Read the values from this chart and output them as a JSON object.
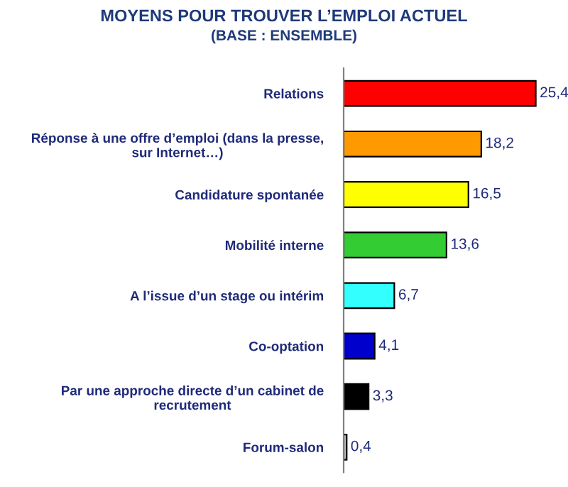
{
  "chart_data": {
    "type": "bar",
    "orientation": "horizontal",
    "title": "MOYENS POUR TROUVER L’EMPLOI ACTUEL",
    "subtitle": "(BASE : ENSEMBLE)",
    "categories": [
      "Relations",
      "Réponse à une offre d’emploi (dans la presse,\nsur Internet…)",
      "Candidature spontanée",
      "Mobilité interne",
      "A l’issue d’un stage ou intérim",
      "Co-optation",
      "Par une approche directe d’un cabinet de\nrecrutement",
      "Forum-salon"
    ],
    "values": [
      25.4,
      18.2,
      16.5,
      13.6,
      6.7,
      4.1,
      3.3,
      0.4
    ],
    "colors": [
      "#ff0000",
      "#ff9900",
      "#ffff00",
      "#33cc33",
      "#33ffff",
      "#0000cc",
      "#000000",
      "#c0c0c0"
    ],
    "value_labels": [
      "25,4",
      "18,2",
      "16,5",
      "13,6",
      "6,7",
      "4,1",
      "3,3",
      "0,4"
    ],
    "grid": false,
    "legend": false
  }
}
